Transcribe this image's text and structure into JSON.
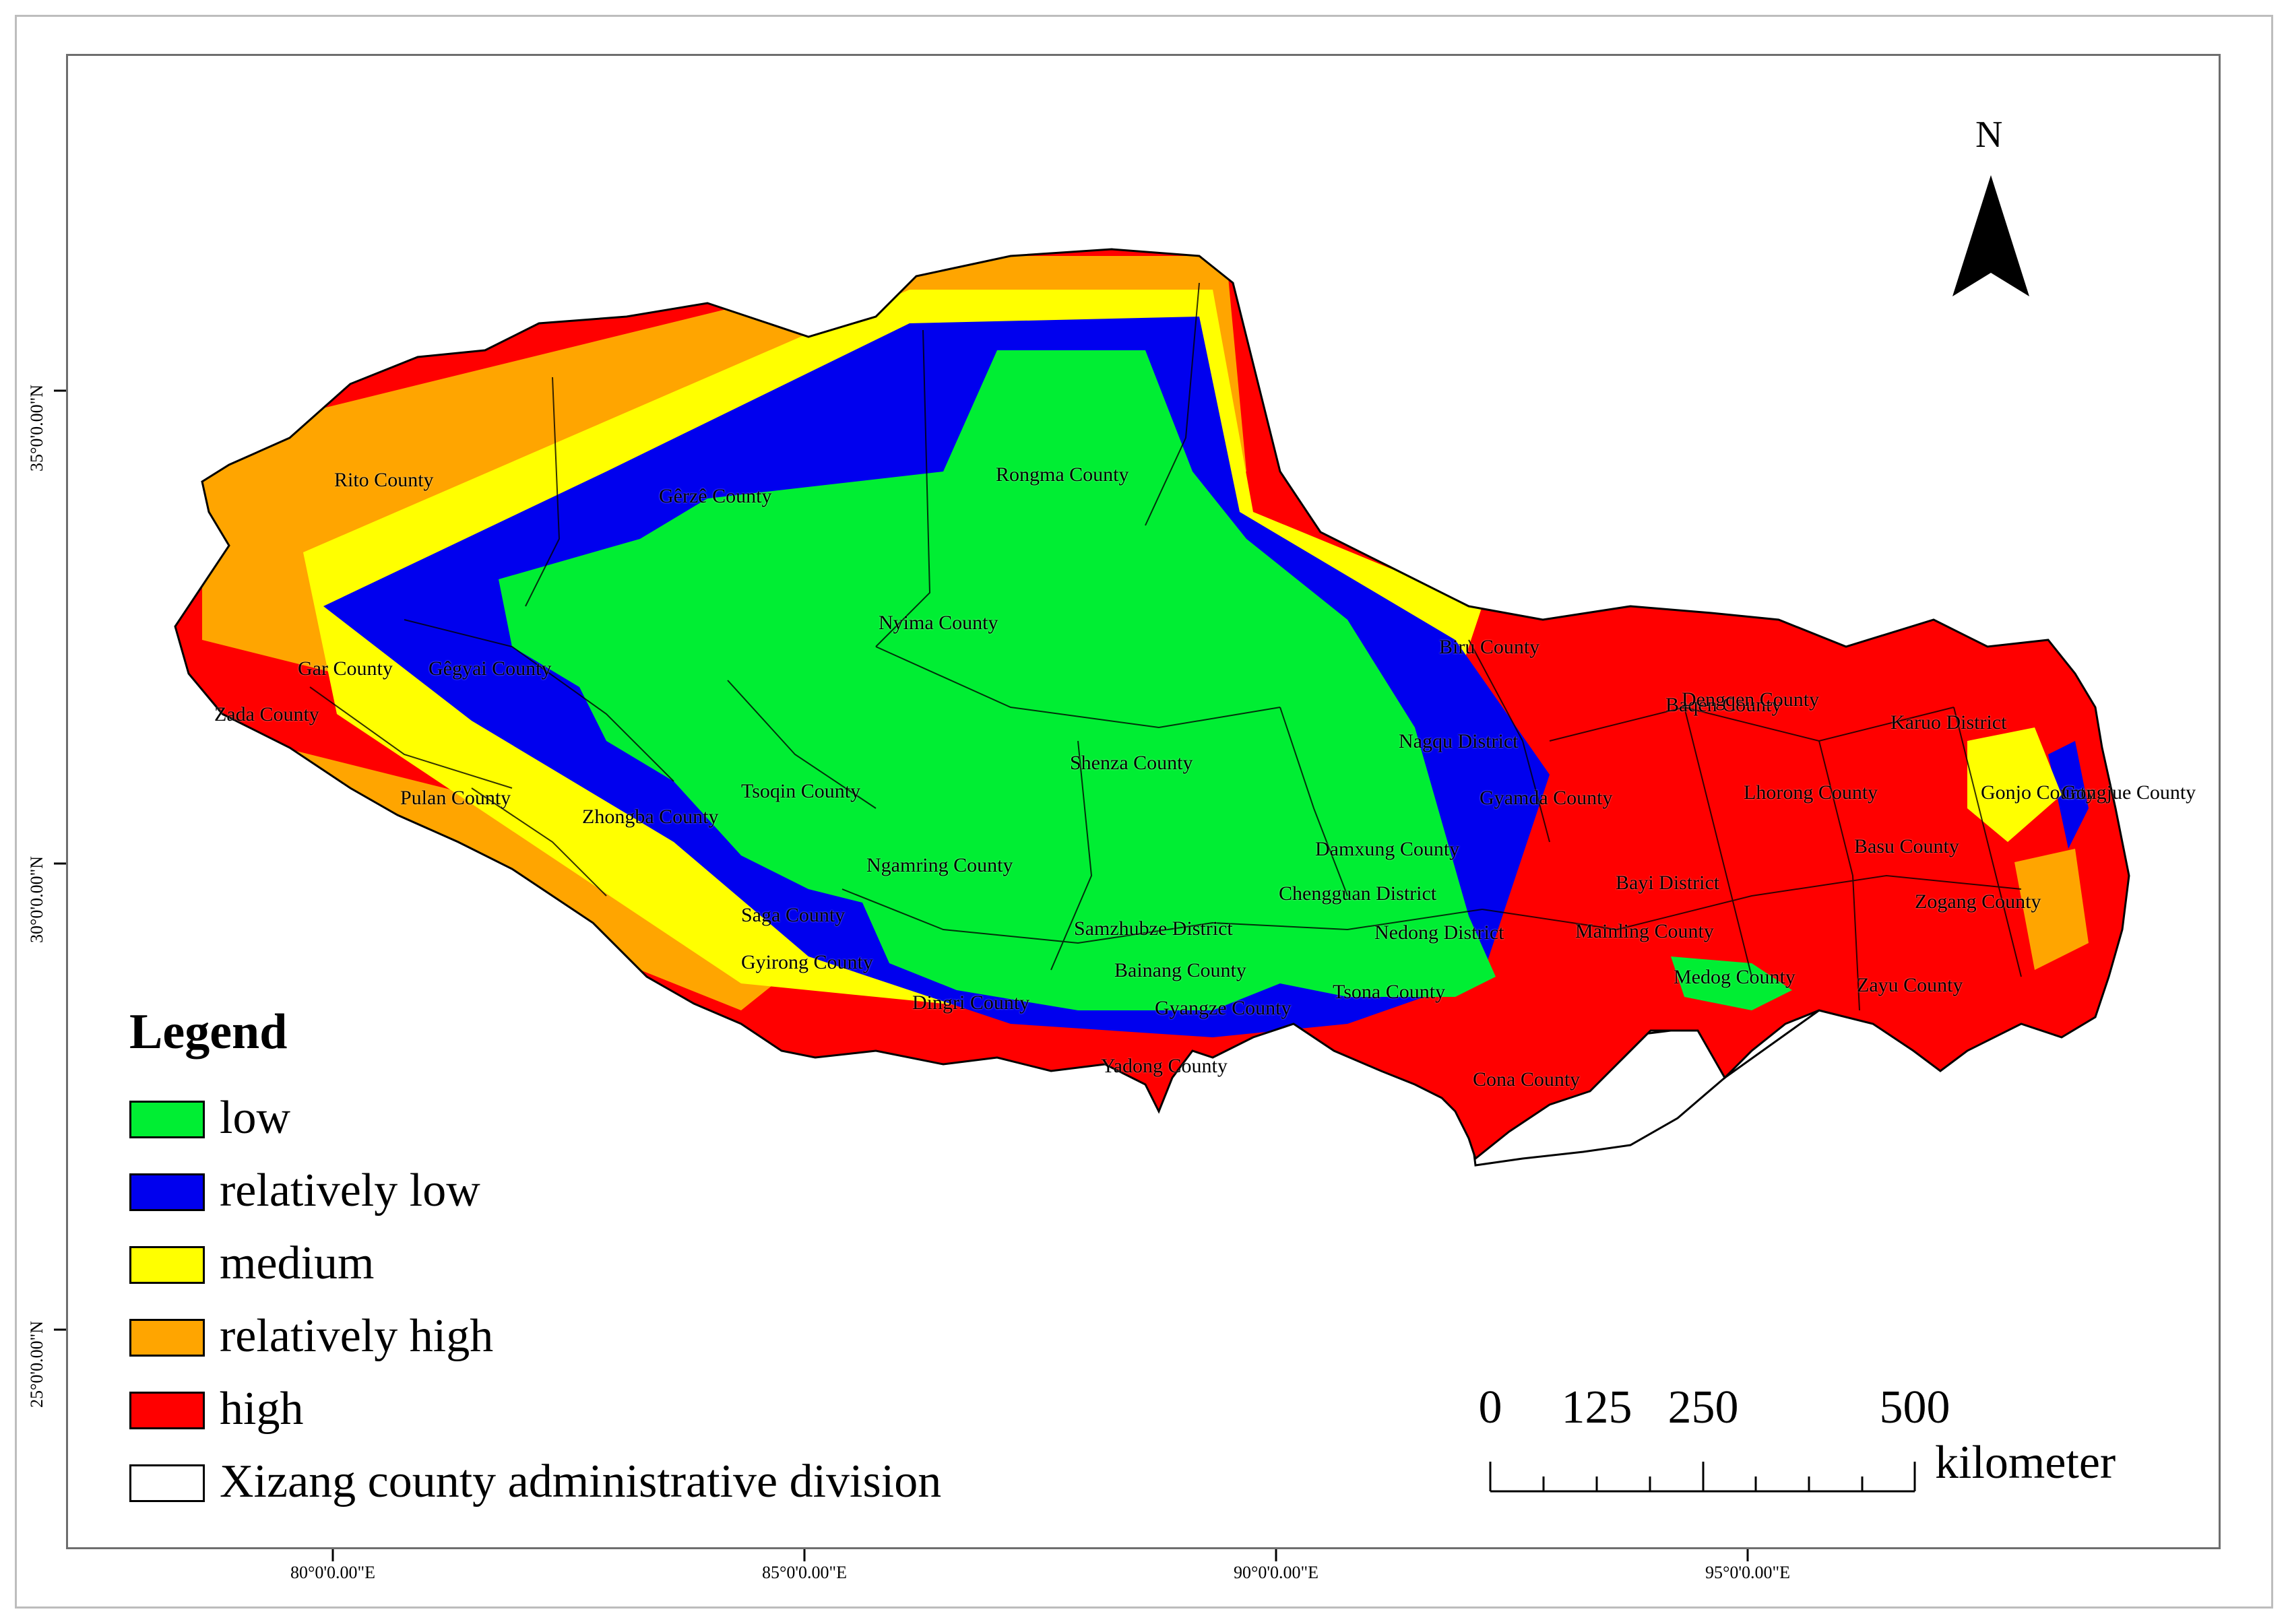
{
  "map": {
    "north_label": "N",
    "longitude_labels": [
      "80°0'0.00\"E",
      "85°0'0.00\"E",
      "90°0'0.00\"E",
      "95°0'0.00\"E"
    ],
    "latitude_labels": [
      "35°0'0.00\"N",
      "30°0'0.00\"N",
      "25°0'0.00\"N"
    ],
    "counties": [
      {
        "name": "Rito County"
      },
      {
        "name": "Gêrzê County"
      },
      {
        "name": "Rongma County"
      },
      {
        "name": "Nyima County"
      },
      {
        "name": "Gar County"
      },
      {
        "name": "Gêgyai County"
      },
      {
        "name": "Zada County"
      },
      {
        "name": "Pulan County"
      },
      {
        "name": "Zhongba County"
      },
      {
        "name": "Tsoqin County"
      },
      {
        "name": "Shenza County"
      },
      {
        "name": "Ngamring County"
      },
      {
        "name": "Saga County"
      },
      {
        "name": "Gyirong County"
      },
      {
        "name": "Dingri County"
      },
      {
        "name": "Samzhubze District"
      },
      {
        "name": "Bainang County"
      },
      {
        "name": "Gyangze County"
      },
      {
        "name": "Yadong County"
      },
      {
        "name": "Chengguan District"
      },
      {
        "name": "Damxung County"
      },
      {
        "name": "Nedong District"
      },
      {
        "name": "Tsona County"
      },
      {
        "name": "Cona County"
      },
      {
        "name": "Biru County"
      },
      {
        "name": "Nagqu District"
      },
      {
        "name": "Gyamda County"
      },
      {
        "name": "Baqen County"
      },
      {
        "name": "Dengqen County"
      },
      {
        "name": "Karuo District"
      },
      {
        "name": "Lhorong County"
      },
      {
        "name": "Gonjo County"
      },
      {
        "name": "Basu County"
      },
      {
        "name": "Bayi District"
      },
      {
        "name": "Zogang County"
      },
      {
        "name": "Mainling County"
      },
      {
        "name": "Medog County"
      },
      {
        "name": "Zayu County"
      },
      {
        "name": "Gongjue County"
      }
    ],
    "colors": {
      "low": "#00ee33",
      "relatively_low": "#0000ee",
      "medium": "#ffff00",
      "relatively_high": "#ffa500",
      "high": "#ff0000",
      "division": "#ffffff"
    }
  },
  "legend": {
    "title": "Legend",
    "items": [
      {
        "label": "low",
        "color": "#00ee33"
      },
      {
        "label": "relatively low",
        "color": "#0000ee"
      },
      {
        "label": "medium",
        "color": "#ffff00"
      },
      {
        "label": "relatively high",
        "color": "#ffa500"
      },
      {
        "label": "high",
        "color": "#ff0000"
      },
      {
        "label": "Xizang county administrative division",
        "color": "#ffffff"
      }
    ]
  },
  "scale_bar": {
    "ticks": [
      "0",
      "125",
      "250",
      "500"
    ],
    "unit": "kilometer"
  }
}
